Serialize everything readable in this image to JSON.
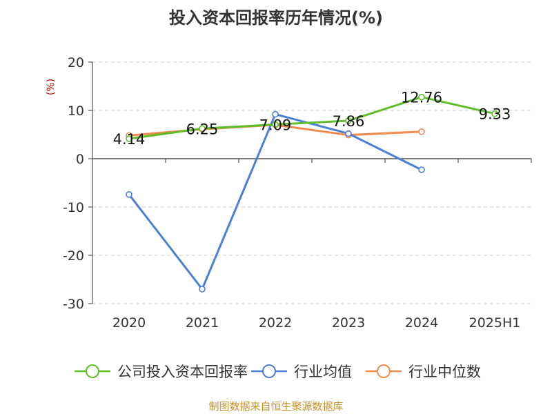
{
  "chart_data": {
    "type": "line",
    "title": "投入资本回报率历年情况(%)",
    "ylabel": "(%)",
    "xlabel": "",
    "categories": [
      "2020",
      "2021",
      "2022",
      "2023",
      "2024",
      "2025H1"
    ],
    "ylim": [
      -30,
      20
    ],
    "yticks": [
      20,
      10,
      0,
      -10,
      -20,
      -30
    ],
    "grid": true,
    "legend_position": "bottom",
    "series": [
      {
        "name": "公司投入资本回报率",
        "color": "#5fbf2a",
        "values": [
          4.14,
          6.25,
          7.09,
          7.86,
          12.76,
          9.33
        ],
        "labels": [
          "4.14",
          "6.25",
          "7.09",
          "7.86",
          "12.76",
          "9.33"
        ]
      },
      {
        "name": "行业均值",
        "color": "#4a7fd6",
        "values": [
          -7.4,
          -27.0,
          9.2,
          5.2,
          -2.3,
          null
        ]
      },
      {
        "name": "行业中位数",
        "color": "#f2894c",
        "values": [
          4.8,
          6.1,
          7.0,
          4.9,
          5.6,
          null
        ]
      }
    ]
  },
  "source": {
    "text": "制图数据来自恒生聚源数据库",
    "color": "#c8912a"
  },
  "axis_color": "#333333",
  "grid_color": "#cccccc",
  "ylabel_color": "#cc0000"
}
